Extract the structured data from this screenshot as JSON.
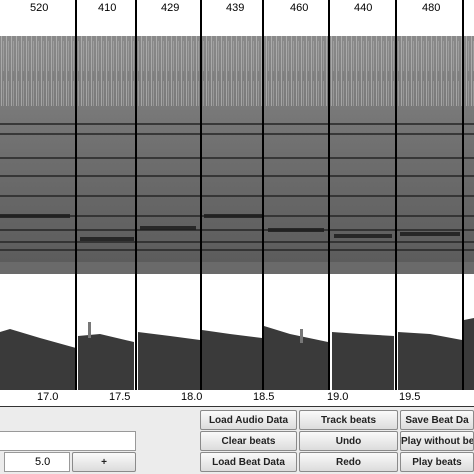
{
  "beat_intervals": [
    "520",
    "410",
    "429",
    "439",
    "460",
    "440",
    "480"
  ],
  "time_axis": [
    "17.0",
    "17.5",
    "18.0",
    "18.5",
    "19.0",
    "19.5"
  ],
  "buttons": {
    "load_audio": "Load Audio Data",
    "track_beats": "Track beats",
    "save_beat": "Save Beat Da",
    "clear_beats": "Clear beats",
    "undo": "Undo",
    "play_without": "Play without bea",
    "load_beat": "Load Beat Data",
    "redo": "Redo",
    "play_beats": "Play beats",
    "plus": "+"
  },
  "inputs": {
    "text_value": "",
    "spin_value": "5.0"
  },
  "colors": {
    "spectrogram_bg": "#7a7a7a",
    "waveform": "#3a3a3a",
    "beat_line": "#000000"
  }
}
